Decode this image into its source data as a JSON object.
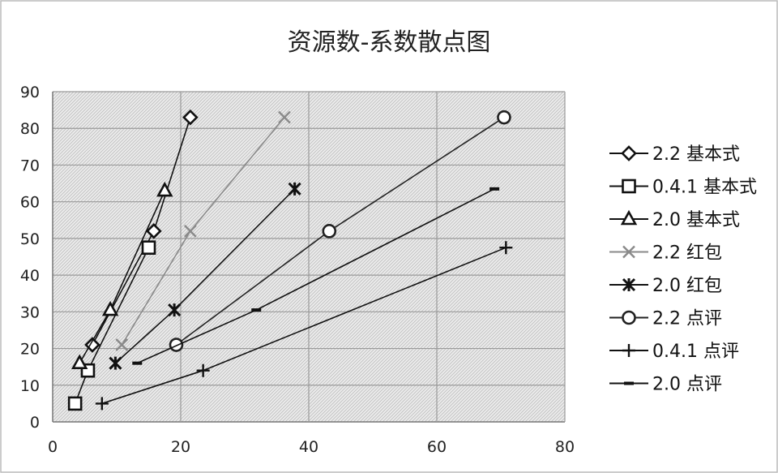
{
  "chart_data": {
    "type": "scatter",
    "title": "资源数-系数散点图",
    "xlabel": "",
    "ylabel": "",
    "xlim": [
      0,
      80
    ],
    "ylim": [
      0,
      90
    ],
    "xticks": [
      0,
      20,
      40,
      60,
      80
    ],
    "yticks": [
      0,
      10,
      20,
      30,
      40,
      50,
      60,
      70,
      80,
      90
    ],
    "grid": true,
    "legend": "right",
    "series": [
      {
        "name": "2.2 基本式",
        "marker": "diamond",
        "color": "#111111",
        "points": [
          [
            6.2,
            21
          ],
          [
            15.8,
            52
          ],
          [
            21.5,
            83
          ]
        ]
      },
      {
        "name": "0.4.1 基本式",
        "marker": "square",
        "color": "#111111",
        "points": [
          [
            3.5,
            5
          ],
          [
            5.5,
            14
          ],
          [
            15,
            47.5
          ]
        ]
      },
      {
        "name": "2.0 基本式",
        "marker": "triangle",
        "color": "#111111",
        "points": [
          [
            4.2,
            16
          ],
          [
            9,
            30.5
          ],
          [
            17.5,
            63
          ]
        ]
      },
      {
        "name": "2.2 红包",
        "marker": "x",
        "color": "#8a8a8a",
        "points": [
          [
            10.8,
            21
          ],
          [
            21.5,
            52
          ],
          [
            36.2,
            83
          ]
        ]
      },
      {
        "name": "2.0 红包",
        "marker": "asterisk",
        "color": "#111111",
        "points": [
          [
            9.8,
            16
          ],
          [
            19,
            30.5
          ],
          [
            37.8,
            63.5
          ]
        ]
      },
      {
        "name": "2.2 点评",
        "marker": "circle",
        "color": "#222222",
        "points": [
          [
            19.3,
            21
          ],
          [
            43.2,
            52
          ],
          [
            70.5,
            83
          ]
        ]
      },
      {
        "name": "0.4.1 点评",
        "marker": "plus",
        "color": "#111111",
        "points": [
          [
            7.7,
            5
          ],
          [
            23.5,
            14
          ],
          [
            70.8,
            47.5
          ]
        ]
      },
      {
        "name": "2.0 点评",
        "marker": "dash",
        "color": "#111111",
        "points": [
          [
            13.2,
            16
          ],
          [
            31.8,
            30.5
          ],
          [
            69,
            63.5
          ]
        ]
      }
    ]
  }
}
